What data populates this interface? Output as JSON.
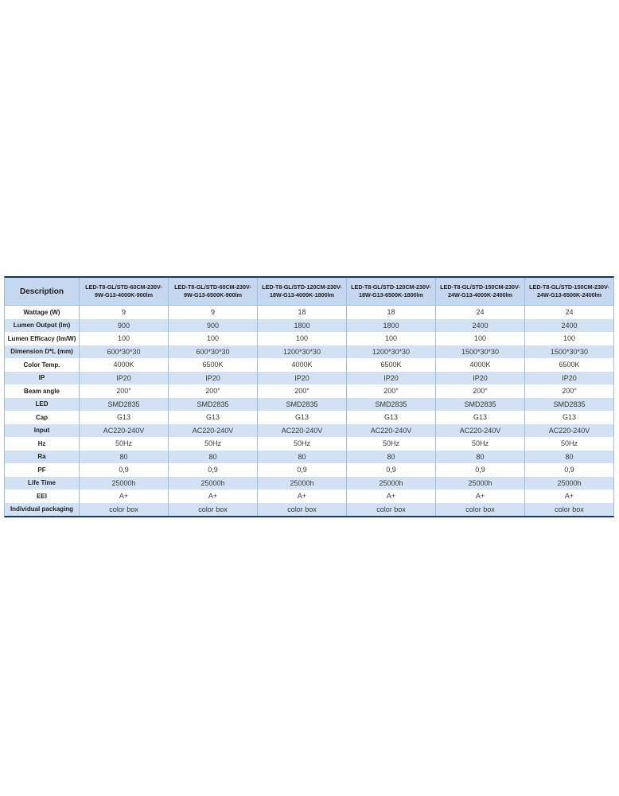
{
  "colors": {
    "outer_border": "#17365d",
    "grid_line": "#9cc0e2",
    "header_bg": "#c5d8ef",
    "stripe_bg": "#d2e2f4",
    "row_bg": "#ffffff",
    "label_text": "#1c1c1c",
    "value_text": "#383838"
  },
  "table": {
    "description_label": "Description",
    "column_headers": [
      "LED-T8-GL/STD-60CM-230V-9W-G13-4000K-900lm",
      "LED-T8-GL/STD-60CM-230V-9W-G13-6500K-900lm",
      "LED-T8-GL/STD-120CM-230V-18W-G13-4000K-1800lm",
      "LED-T8-GL/STD-120CM-230V-18W-G13-6500K-1800lm",
      "LED-T8-GL/STD-150CM-230V-24W-G13-4000K-2400lm",
      "LED-T8-GL/STD-150CM-230V-24W-G13-6500K-2400lm"
    ],
    "rows": [
      {
        "label": "Wattage (W)",
        "values": [
          "9",
          "9",
          "18",
          "18",
          "24",
          "24"
        ]
      },
      {
        "label": "Lumen Output (lm)",
        "values": [
          "900",
          "900",
          "1800",
          "1800",
          "2400",
          "2400"
        ]
      },
      {
        "label": "Lumen Efficacy (lm/W)",
        "values": [
          "100",
          "100",
          "100",
          "100",
          "100",
          "100"
        ]
      },
      {
        "label": "Dimension D*L (mm)",
        "values": [
          "600*30*30",
          "600*30*30",
          "1200*30*30",
          "1200*30*30",
          "1500*30*30",
          "1500*30*30"
        ]
      },
      {
        "label": "Color Temp.",
        "values": [
          "4000K",
          "6500K",
          "4000K",
          "6500K",
          "4000K",
          "6500K"
        ]
      },
      {
        "label": "IP",
        "values": [
          "IP20",
          "IP20",
          "IP20",
          "IP20",
          "IP20",
          "IP20"
        ]
      },
      {
        "label": "Beam angle",
        "values": [
          "200°",
          "200°",
          "200°",
          "200°",
          "200°",
          "200°"
        ]
      },
      {
        "label": "LED",
        "values": [
          "SMD2835",
          "SMD2835",
          "SMD2835",
          "SMD2835",
          "SMD2835",
          "SMD2835"
        ]
      },
      {
        "label": "Cap",
        "values": [
          "G13",
          "G13",
          "G13",
          "G13",
          "G13",
          "G13"
        ]
      },
      {
        "label": "Input",
        "values": [
          "AC220-240V",
          "AC220-240V",
          "AC220-240V",
          "AC220-240V",
          "AC220-240V",
          "AC220-240V"
        ]
      },
      {
        "label": "Hz",
        "values": [
          "50Hz",
          "50Hz",
          "50Hz",
          "50Hz",
          "50Hz",
          "50Hz"
        ]
      },
      {
        "label": "Ra",
        "values": [
          "80",
          "80",
          "80",
          "80",
          "80",
          "80"
        ]
      },
      {
        "label": "PF",
        "values": [
          "0,9",
          "0,9",
          "0,9",
          "0,9",
          "0,9",
          "0,9"
        ]
      },
      {
        "label": "Life Time",
        "values": [
          "25000h",
          "25000h",
          "25000h",
          "25000h",
          "25000h",
          "25000h"
        ]
      },
      {
        "label": "EEI",
        "values": [
          "A+",
          "A+",
          "A+",
          "A+",
          "A+",
          "A+"
        ]
      },
      {
        "label": "Individual packaging",
        "values": [
          "color box",
          "color box",
          "color box",
          "color box",
          "color box",
          "color box"
        ]
      }
    ]
  }
}
